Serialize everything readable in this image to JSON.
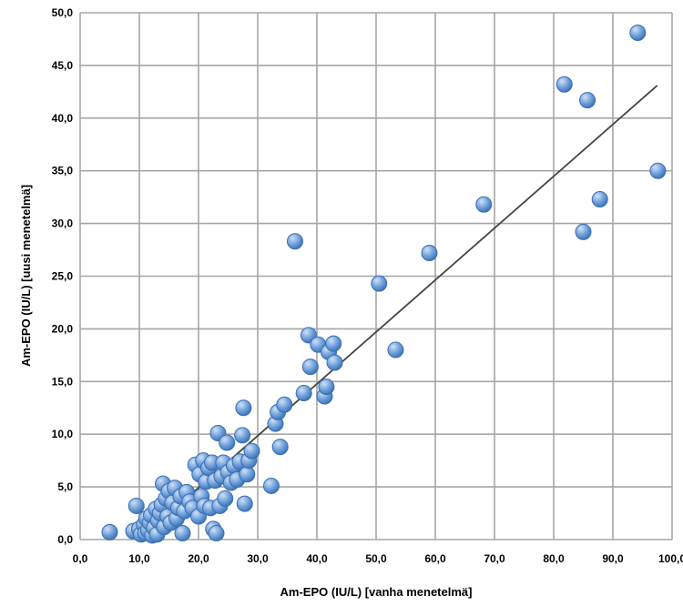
{
  "chart_data": {
    "type": "scatter",
    "title": "",
    "xlabel": "Am-EPO (IU/L)    [vanha menetelmä]",
    "ylabel": "Am-EPO (IU/L)    [uusi menetelmä]",
    "xlim": [
      0,
      100
    ],
    "ylim": [
      0,
      50
    ],
    "x_ticks": [
      "0,0",
      "10,0",
      "20,0",
      "30,0",
      "40,0",
      "50,0",
      "60,0",
      "70,0",
      "80,0",
      "90,0",
      "100,0"
    ],
    "y_ticks": [
      "0,0",
      "5,0",
      "10,0",
      "15,0",
      "20,0",
      "25,0",
      "30,0",
      "35,0",
      "40,0",
      "45,0",
      "50,0"
    ],
    "grid": true,
    "marker_color": "#6fa0dc",
    "marker_edge": "#3a6fb0",
    "trendline": {
      "x": [
        10,
        97.5
      ],
      "y": [
        0,
        43.1
      ],
      "color": "#444444"
    },
    "points": [
      [
        5.0,
        0.7
      ],
      [
        9.5,
        3.2
      ],
      [
        9.0,
        0.8
      ],
      [
        10.0,
        1.0
      ],
      [
        10.3,
        0.5
      ],
      [
        10.8,
        1.4
      ],
      [
        11.0,
        0.6
      ],
      [
        11.2,
        2.0
      ],
      [
        11.5,
        0.9
      ],
      [
        11.8,
        1.6
      ],
      [
        12.0,
        2.3
      ],
      [
        12.2,
        0.4
      ],
      [
        12.5,
        1.1
      ],
      [
        12.8,
        2.9
      ],
      [
        13.0,
        0.5
      ],
      [
        13.2,
        1.8
      ],
      [
        13.5,
        2.5
      ],
      [
        13.8,
        3.3
      ],
      [
        14.0,
        5.3
      ],
      [
        14.2,
        1.2
      ],
      [
        14.5,
        3.9
      ],
      [
        14.8,
        2.2
      ],
      [
        15.0,
        4.6
      ],
      [
        15.3,
        1.6
      ],
      [
        15.6,
        3.5
      ],
      [
        16.0,
        4.9
      ],
      [
        16.3,
        2.0
      ],
      [
        16.6,
        3.0
      ],
      [
        17.0,
        4.1
      ],
      [
        17.3,
        0.6
      ],
      [
        17.6,
        2.7
      ],
      [
        18.0,
        4.5
      ],
      [
        18.5,
        3.6
      ],
      [
        19.0,
        3.0
      ],
      [
        19.5,
        7.1
      ],
      [
        20.0,
        2.2
      ],
      [
        20.2,
        6.2
      ],
      [
        20.5,
        4.1
      ],
      [
        20.8,
        7.5
      ],
      [
        21.0,
        3.2
      ],
      [
        21.3,
        5.5
      ],
      [
        21.7,
        6.8
      ],
      [
        22.0,
        3.0
      ],
      [
        22.3,
        7.3
      ],
      [
        22.5,
        1.0
      ],
      [
        22.8,
        5.6
      ],
      [
        23.0,
        0.6
      ],
      [
        23.3,
        10.1
      ],
      [
        23.6,
        3.2
      ],
      [
        23.9,
        6.0
      ],
      [
        24.2,
        7.3
      ],
      [
        24.5,
        3.9
      ],
      [
        24.8,
        9.2
      ],
      [
        25.0,
        6.4
      ],
      [
        25.5,
        5.4
      ],
      [
        26.0,
        7.0
      ],
      [
        26.5,
        5.7
      ],
      [
        27.0,
        7.4
      ],
      [
        27.4,
        9.9
      ],
      [
        27.6,
        12.5
      ],
      [
        27.8,
        3.4
      ],
      [
        28.2,
        6.2
      ],
      [
        28.5,
        7.5
      ],
      [
        29.0,
        8.4
      ],
      [
        32.3,
        5.1
      ],
      [
        33.0,
        11.0
      ],
      [
        33.4,
        12.1
      ],
      [
        33.8,
        8.8
      ],
      [
        34.5,
        12.8
      ],
      [
        36.3,
        28.3
      ],
      [
        37.8,
        13.9
      ],
      [
        38.6,
        19.4
      ],
      [
        38.9,
        16.4
      ],
      [
        40.2,
        18.5
      ],
      [
        41.3,
        13.6
      ],
      [
        41.6,
        14.5
      ],
      [
        42.0,
        17.8
      ],
      [
        42.8,
        18.6
      ],
      [
        43.0,
        16.8
      ],
      [
        50.5,
        24.3
      ],
      [
        53.3,
        18.0
      ],
      [
        59.0,
        27.2
      ],
      [
        68.2,
        31.8
      ],
      [
        81.8,
        43.2
      ],
      [
        85.0,
        29.2
      ],
      [
        85.7,
        41.7
      ],
      [
        87.8,
        32.3
      ],
      [
        94.2,
        48.1
      ],
      [
        97.6,
        35.0
      ]
    ]
  }
}
